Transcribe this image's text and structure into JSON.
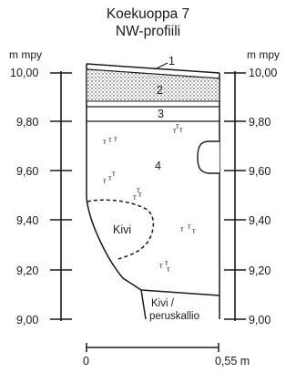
{
  "title": "Koekuoppa 7",
  "subtitle": "NW-profiili",
  "axis_unit_left": "m mpy",
  "axis_unit_right": "m mpy",
  "elevation_ticks": [
    "10,00",
    "9,80",
    "9,60",
    "9,40",
    "9,20",
    "9,00"
  ],
  "layers": [
    {
      "id": "1",
      "label": "1"
    },
    {
      "id": "2",
      "label": "2"
    },
    {
      "id": "3",
      "label": "3"
    },
    {
      "id": "4",
      "label": "4"
    }
  ],
  "features": {
    "stone": "Kivi",
    "bedrock_line1": "Kivi /",
    "bedrock_line2": "peruskallio"
  },
  "scale": {
    "start": "0",
    "end": "0,55 m"
  }
}
